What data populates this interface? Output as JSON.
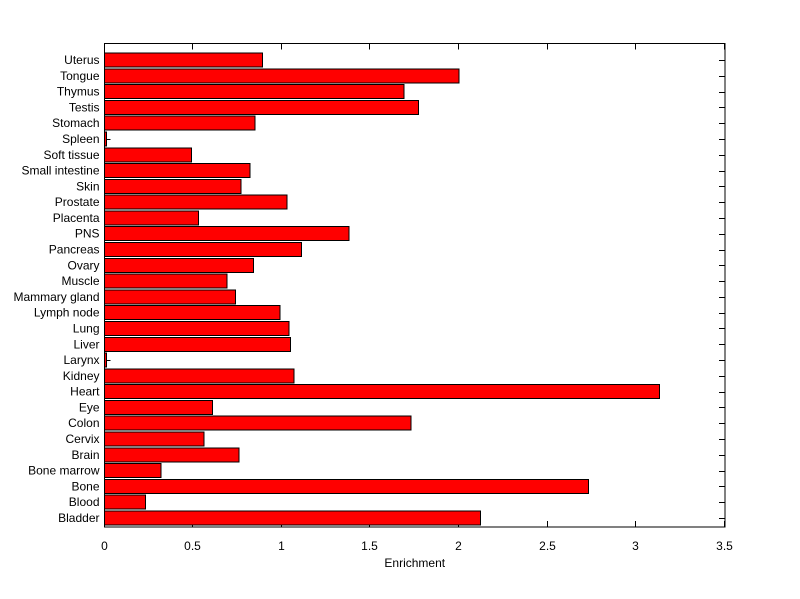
{
  "figure": {
    "background": "#ffffff"
  },
  "chart_data": {
    "type": "bar",
    "orientation": "horizontal",
    "title": "",
    "xlabel": "Enrichment",
    "ylabel": "",
    "xlim": [
      0,
      3.5
    ],
    "xticks": [
      0,
      0.5,
      1,
      1.5,
      2,
      2.5,
      3,
      3.5
    ],
    "xtick_labels": [
      "0",
      "0.5",
      "1",
      "1.5",
      "2",
      "2.5",
      "3",
      "3.5"
    ],
    "grid": false,
    "legend_position": "none",
    "bar_color": "#ff0000",
    "bar_edge_color": "#000000",
    "axis_color": "#000000",
    "categories_top_to_bottom": [
      "Uterus",
      "Tongue",
      "Thymus",
      "Testis",
      "Stomach",
      "Spleen",
      "Soft tissue",
      "Small intestine",
      "Skin",
      "Prostate",
      "Placenta",
      "PNS",
      "Pancreas",
      "Ovary",
      "Muscle",
      "Mammary gland",
      "Lymph node",
      "Lung",
      "Liver",
      "Larynx",
      "Kidney",
      "Heart",
      "Eye",
      "Colon",
      "Cervix",
      "Brain",
      "Bone marrow",
      "Bone",
      "Blood",
      "Bladder"
    ],
    "values": [
      0.89,
      2.0,
      1.69,
      1.77,
      0.85,
      0.01,
      0.49,
      0.82,
      0.77,
      1.03,
      0.53,
      1.38,
      1.11,
      0.84,
      0.69,
      0.74,
      0.99,
      1.04,
      1.05,
      0.01,
      1.07,
      3.13,
      0.61,
      1.73,
      0.56,
      0.76,
      0.32,
      2.73,
      0.23,
      2.12
    ]
  }
}
